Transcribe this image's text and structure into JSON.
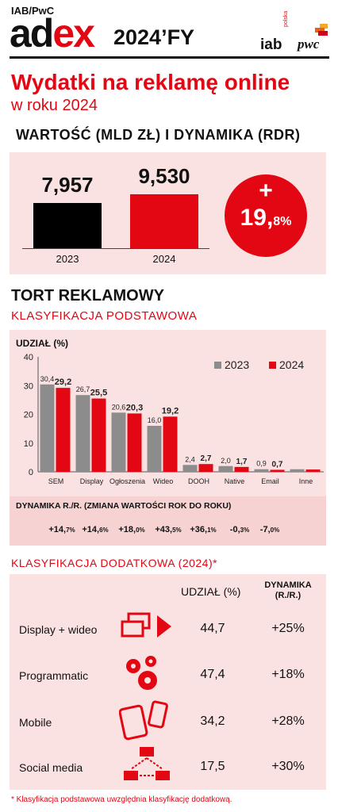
{
  "header": {
    "small": "IAB/PwC",
    "logo_a": "ad",
    "logo_b": "ex",
    "year": "2024’FY",
    "iab": "iab",
    "iab_sub": "polska",
    "pwc": "pwc"
  },
  "title": {
    "main": "Wydatki na reklamę online",
    "sub": "w roku 2024"
  },
  "section1": {
    "title": "WARTOŚĆ (MLD ZŁ) I DYNAMIKA (RDR)",
    "growth_plus": "+",
    "growth_main": "19,",
    "growth_small": "8%",
    "colors": {
      "y2023": "#000000",
      "y2024": "#e30613"
    }
  },
  "section2": {
    "title": "TORT REKLAMOWY",
    "subtitle": "KLASYFIKACJA PODSTAWOWA",
    "udzial_label": "UDZIAŁ (%)",
    "dyn_title": "DYNAMIKA R./R. (ZMIANA WARTOŚCI ROK DO ROKU)",
    "dynamics": [
      {
        "main": "+14,",
        "small": "7%"
      },
      {
        "main": "+14,",
        "small": "6%"
      },
      {
        "main": "+18,",
        "small": "0%"
      },
      {
        "main": "+43,",
        "small": "5%"
      },
      {
        "main": "+36,",
        "small": "1%"
      },
      {
        "main": "-0,",
        "small": "3%"
      },
      {
        "main": "-7,",
        "small": "0%"
      }
    ],
    "colors": {
      "y2023": "#8c8c8c",
      "y2024": "#e30613"
    }
  },
  "section3": {
    "title": "KLASYFIKACJA DODATKOWA (2024)*",
    "col_share": "UDZIAŁ (%)",
    "col_dyn1": "DYNAMIKA",
    "col_dyn2": "(R./R.)",
    "rows": [
      {
        "name": "Display + wideo",
        "share": "44,7",
        "dyn": "+25%",
        "icon": "display-video-icon"
      },
      {
        "name": "Programmatic",
        "share": "47,4",
        "dyn": "+18%",
        "icon": "gears-icon"
      },
      {
        "name": "Mobile",
        "share": "34,2",
        "dyn": "+28%",
        "icon": "mobile-devices-icon"
      },
      {
        "name": "Social media",
        "share": "17,5",
        "dyn": "+30%",
        "icon": "network-icon"
      }
    ]
  },
  "footnote": "* Klasyfikacja podstawowa uwzględnia klasyfikację dodatkową.",
  "chart_data": [
    {
      "type": "bar",
      "categories": [
        "2023",
        "2024"
      ],
      "values": [
        7.957,
        9.53
      ],
      "value_labels": [
        "7,957",
        "9,530"
      ],
      "ylim": [
        0,
        10
      ]
    },
    {
      "type": "bar",
      "categories": [
        "SEM",
        "Display",
        "Ogłoszenia",
        "Wideo",
        "DOOH",
        "Native",
        "Email",
        "Inne"
      ],
      "series": [
        {
          "name": "2023",
          "values": [
            30.4,
            26.7,
            20.6,
            16.0,
            2.4,
            2.0,
            0.9,
            0.9
          ],
          "labels": [
            "30,4",
            "26,7",
            "20,6",
            "16,0",
            "2,4",
            "2,0",
            "0,9",
            ""
          ]
        },
        {
          "name": "2024",
          "values": [
            29.2,
            25.5,
            20.3,
            19.2,
            2.7,
            1.7,
            0.7,
            0.8
          ],
          "labels": [
            "29,2",
            "25,5",
            "20,3",
            "19,2",
            "2,7",
            "1,7",
            "0,7",
            ""
          ]
        }
      ],
      "ylim": [
        0,
        40
      ],
      "yticks": [
        0,
        10,
        20,
        30,
        40
      ],
      "legend": "top-right",
      "grid": false
    }
  ]
}
